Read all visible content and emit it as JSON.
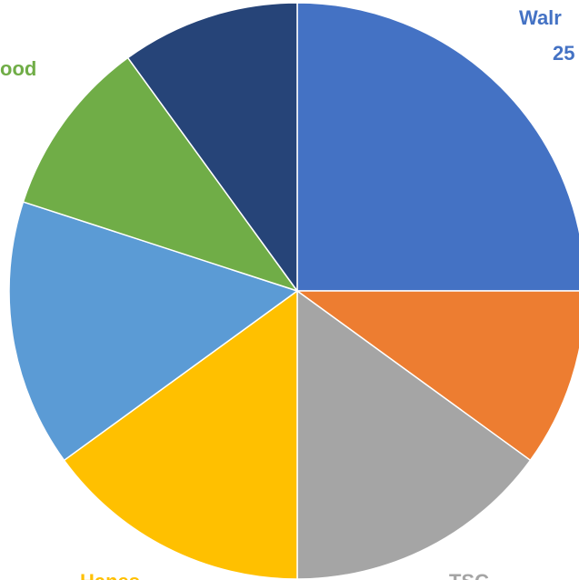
{
  "chart_data": {
    "type": "pie",
    "title": "",
    "slices": [
      {
        "name": "Walmart",
        "value": 25,
        "color": "#4472C4"
      },
      {
        "name": "",
        "value": 10,
        "color": "#ED7D31"
      },
      {
        "name": "TSC",
        "value": 15,
        "color": "#A5A5A5"
      },
      {
        "name": "Hanes",
        "value": 15,
        "color": "#FFC000"
      },
      {
        "name": "",
        "value": 15,
        "color": "#5B9BD5"
      },
      {
        "name": "Goodwood",
        "value": 10,
        "color": "#70AD47"
      },
      {
        "name": "",
        "value": 10,
        "color": "#264478"
      }
    ],
    "data_labels": [
      {
        "text": "Walr",
        "color": "#4472C4"
      },
      {
        "text": "25",
        "color": "#4472C4"
      },
      {
        "text": "ood",
        "color": "#70AD47"
      },
      {
        "text": "Hanes",
        "color": "#FFC000"
      },
      {
        "text": "TSC",
        "color": "#A5A5A5"
      }
    ],
    "legend": "none"
  }
}
